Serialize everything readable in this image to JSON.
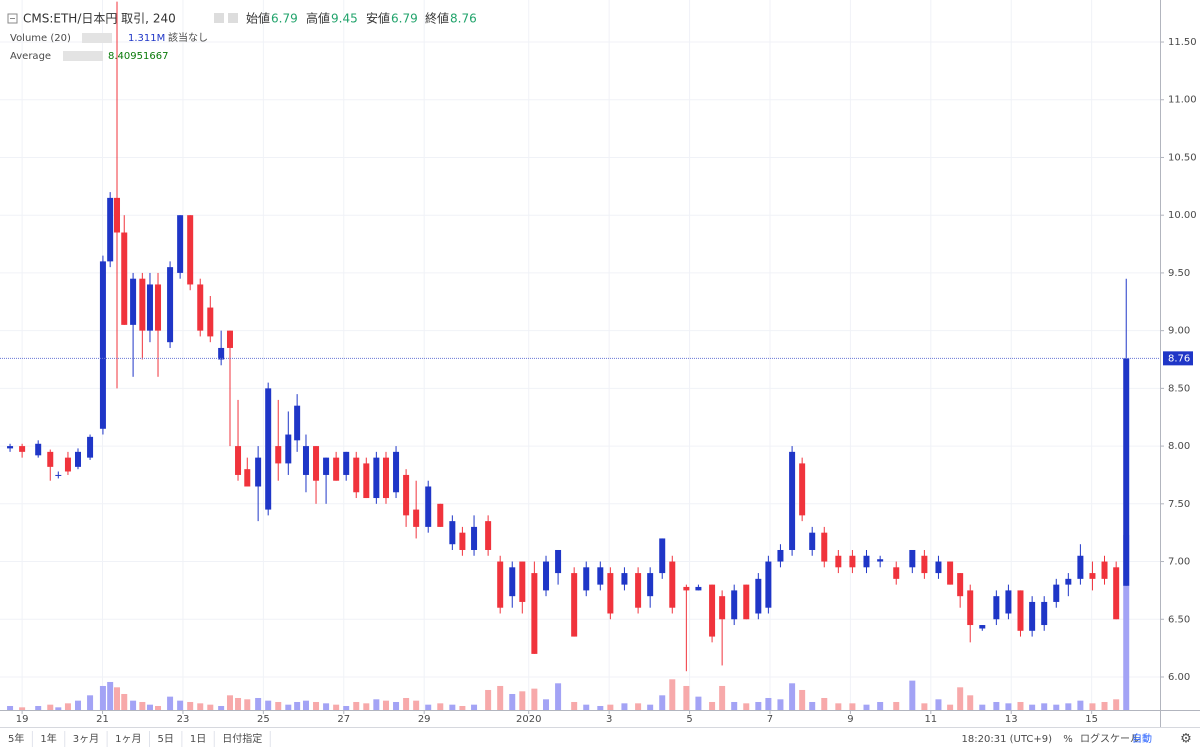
{
  "chart_data": {
    "type": "candlestick",
    "legend": {
      "symbol": "CMS:ETH/日本円 取引, 240",
      "open_label": "始値",
      "open": 6.79,
      "high_label": "高値",
      "high": 9.45,
      "low_label": "安値",
      "low": 6.79,
      "close_label": "終値",
      "close": 8.76
    },
    "volume_legend": {
      "name": "Volume (20)",
      "value": "1.311M",
      "note": "該当なし"
    },
    "average_legend": {
      "name": "Average",
      "value": 8.40951667
    },
    "last_price": 8.76,
    "up_color": "#1f36c7",
    "down_color": "#f0333c",
    "volume_up_color": "#a3a3f5",
    "volume_down_color": "#f7a9aa",
    "grid": true,
    "xlim": [
      -0.55,
      28.3
    ],
    "ylim": [
      5.714,
      11.864
    ],
    "yticks": [
      {
        "value": 6,
        "label": "6.00"
      },
      {
        "value": 6.5,
        "label": "6.50"
      },
      {
        "value": 7,
        "label": "7.00"
      },
      {
        "value": 7.5,
        "label": "7.50"
      },
      {
        "value": 8,
        "label": "8.00"
      },
      {
        "value": 8.5,
        "label": "8.50"
      },
      {
        "value": 9,
        "label": "9.00"
      },
      {
        "value": 9.5,
        "label": "9.50"
      },
      {
        "value": 10,
        "label": "10.00"
      },
      {
        "value": 10.5,
        "label": "10.50"
      },
      {
        "value": 11,
        "label": "11.00"
      },
      {
        "value": 11.5,
        "label": "11.50"
      }
    ],
    "xticks": [
      {
        "value": 0,
        "label": "19"
      },
      {
        "value": 2,
        "label": "21"
      },
      {
        "value": 4,
        "label": "23"
      },
      {
        "value": 6,
        "label": "25"
      },
      {
        "value": 8,
        "label": "27"
      },
      {
        "value": 10,
        "label": "29"
      },
      {
        "value": 12.6,
        "label": "2020"
      },
      {
        "value": 14.6,
        "label": "3"
      },
      {
        "value": 16.6,
        "label": "5"
      },
      {
        "value": 18.6,
        "label": "7"
      },
      {
        "value": 20.6,
        "label": "9"
      },
      {
        "value": 22.6,
        "label": "11"
      },
      {
        "value": 24.6,
        "label": "13"
      },
      {
        "value": 26.6,
        "label": "15"
      }
    ],
    "x": [
      -0.3,
      0,
      0.4,
      0.7,
      0.9,
      1.14,
      1.39,
      1.69,
      2.01,
      2.19,
      2.36,
      2.54,
      2.76,
      2.99,
      3.18,
      3.38,
      3.68,
      3.93,
      4.18,
      4.43,
      4.68,
      4.95,
      5.17,
      5.37,
      5.6,
      5.87,
      6.12,
      6.37,
      6.62,
      6.84,
      7.06,
      7.31,
      7.56,
      7.81,
      8.06,
      8.31,
      8.56,
      8.81,
      9.05,
      9.3,
      9.55,
      9.8,
      10.1,
      10.4,
      10.7,
      10.95,
      11.24,
      11.59,
      11.89,
      12.19,
      12.44,
      12.74,
      13.03,
      13.33,
      13.73,
      14.03,
      14.38,
      14.63,
      14.98,
      15.32,
      15.62,
      15.92,
      16.17,
      16.52,
      16.82,
      17.16,
      17.41,
      17.71,
      18.01,
      18.31,
      18.56,
      18.86,
      19.15,
      19.4,
      19.65,
      19.95,
      20.3,
      20.65,
      21.0,
      21.34,
      21.74,
      22.14,
      22.44,
      22.79,
      23.08,
      23.33,
      23.58,
      23.88,
      24.23,
      24.53,
      24.83,
      25.12,
      25.42,
      25.72,
      26.02,
      26.32,
      26.62,
      26.92,
      27.21,
      27.46
    ],
    "open": [
      7.98,
      8.0,
      7.92,
      7.95,
      7.75,
      7.9,
      7.82,
      7.9,
      8.15,
      9.6,
      10.15,
      9.85,
      9.05,
      9.45,
      9.0,
      9.4,
      8.9,
      9.5,
      10.0,
      9.4,
      9.2,
      8.75,
      9.0,
      8.0,
      7.8,
      7.65,
      7.45,
      8.0,
      7.85,
      8.05,
      7.75,
      8.0,
      7.75,
      7.9,
      7.75,
      7.9,
      7.85,
      7.55,
      7.9,
      7.6,
      7.75,
      7.45,
      7.3,
      7.5,
      7.15,
      7.25,
      7.1,
      7.35,
      7.0,
      6.7,
      7.0,
      6.9,
      6.75,
      6.9,
      6.9,
      6.75,
      6.8,
      6.9,
      6.8,
      6.9,
      6.7,
      6.9,
      7.0,
      6.78,
      6.75,
      6.8,
      6.7,
      6.5,
      6.8,
      6.55,
      6.6,
      7.0,
      7.1,
      7.85,
      7.1,
      7.25,
      7.05,
      7.05,
      6.95,
      7.0,
      6.95,
      6.95,
      7.05,
      6.9,
      7.0,
      6.9,
      6.75,
      6.42,
      6.5,
      6.55,
      6.75,
      6.4,
      6.45,
      6.65,
      6.8,
      6.85,
      6.9,
      7.0,
      6.95,
      6.79
    ],
    "high": [
      8.02,
      8.02,
      8.05,
      7.97,
      7.78,
      7.95,
      7.98,
      8.1,
      9.65,
      10.2,
      11.85,
      10.0,
      9.5,
      9.5,
      9.5,
      9.5,
      9.6,
      10.0,
      10.0,
      9.45,
      9.3,
      9.0,
      9.0,
      8.4,
      7.9,
      8.0,
      8.55,
      8.4,
      8.3,
      8.45,
      8.1,
      8.0,
      7.9,
      7.95,
      7.95,
      7.95,
      7.9,
      7.95,
      7.95,
      8.0,
      7.8,
      7.7,
      7.7,
      7.5,
      7.4,
      7.3,
      7.4,
      7.4,
      7.05,
      7.0,
      7.0,
      7.0,
      7.05,
      7.1,
      6.95,
      7.0,
      7.0,
      6.95,
      6.95,
      6.95,
      6.95,
      7.2,
      7.05,
      6.8,
      6.8,
      6.8,
      6.75,
      6.8,
      6.8,
      6.9,
      7.05,
      7.15,
      8.0,
      7.9,
      7.3,
      7.3,
      7.1,
      7.1,
      7.1,
      7.05,
      7.0,
      7.1,
      7.1,
      7.05,
      7.0,
      6.9,
      6.8,
      6.45,
      6.75,
      6.8,
      6.75,
      6.7,
      6.7,
      6.85,
      6.9,
      7.15,
      7.0,
      7.05,
      7.0,
      9.45
    ],
    "low": [
      7.95,
      7.9,
      7.9,
      7.7,
      7.72,
      7.75,
      7.8,
      7.88,
      8.1,
      9.55,
      8.5,
      9.05,
      8.6,
      8.75,
      8.9,
      8.6,
      8.85,
      9.45,
      9.35,
      8.95,
      8.9,
      8.7,
      8.0,
      7.7,
      7.65,
      7.35,
      7.4,
      7.7,
      7.75,
      7.95,
      7.6,
      7.5,
      7.5,
      7.7,
      7.7,
      7.55,
      7.55,
      7.5,
      7.5,
      7.55,
      7.3,
      7.2,
      7.25,
      7.3,
      7.1,
      7.05,
      7.05,
      7.05,
      6.55,
      6.6,
      6.55,
      6.2,
      6.7,
      6.8,
      6.35,
      6.7,
      6.75,
      6.5,
      6.75,
      6.55,
      6.6,
      6.85,
      6.55,
      6.05,
      6.75,
      6.3,
      6.1,
      6.45,
      6.5,
      6.5,
      6.55,
      6.95,
      7.05,
      7.35,
      7.05,
      6.95,
      6.9,
      6.9,
      6.9,
      6.95,
      6.8,
      6.9,
      6.85,
      6.85,
      6.8,
      6.6,
      6.3,
      6.4,
      6.45,
      6.5,
      6.35,
      6.35,
      6.4,
      6.6,
      6.7,
      6.8,
      6.75,
      6.8,
      6.5,
      6.79
    ],
    "close": [
      8.0,
      7.95,
      8.02,
      7.82,
      7.75,
      7.78,
      7.95,
      8.08,
      9.6,
      10.15,
      9.85,
      9.05,
      9.45,
      9.0,
      9.4,
      9.0,
      9.55,
      10.0,
      9.4,
      9.0,
      8.95,
      8.85,
      8.85,
      7.75,
      7.65,
      7.9,
      8.5,
      7.85,
      8.1,
      8.35,
      8.0,
      7.7,
      7.9,
      7.7,
      7.95,
      7.6,
      7.55,
      7.9,
      7.55,
      7.95,
      7.4,
      7.3,
      7.65,
      7.3,
      7.35,
      7.1,
      7.3,
      7.1,
      6.6,
      6.95,
      6.65,
      6.2,
      7.0,
      7.1,
      6.35,
      6.95,
      6.95,
      6.55,
      6.9,
      6.6,
      6.9,
      7.2,
      6.6,
      6.75,
      6.78,
      6.35,
      6.5,
      6.75,
      6.5,
      6.85,
      7.0,
      7.1,
      7.95,
      7.4,
      7.25,
      7.0,
      6.95,
      6.95,
      7.05,
      7.02,
      6.85,
      7.1,
      6.9,
      7.0,
      6.8,
      6.7,
      6.45,
      6.45,
      6.7,
      6.75,
      6.4,
      6.65,
      6.65,
      6.8,
      6.85,
      7.05,
      6.85,
      6.85,
      6.5,
      8.76
    ],
    "volume": [
      30000,
      20000,
      30000,
      40000,
      20000,
      50000,
      70000,
      110000,
      180000,
      210000,
      170000,
      120000,
      70000,
      60000,
      40000,
      30000,
      100000,
      70000,
      60000,
      50000,
      40000,
      30000,
      110000,
      90000,
      80000,
      90000,
      70000,
      60000,
      40000,
      60000,
      70000,
      60000,
      50000,
      40000,
      30000,
      60000,
      50000,
      80000,
      70000,
      60000,
      90000,
      70000,
      40000,
      50000,
      40000,
      30000,
      40000,
      150000,
      180000,
      120000,
      140000,
      160000,
      80000,
      200000,
      60000,
      40000,
      30000,
      40000,
      50000,
      50000,
      40000,
      110000,
      230000,
      180000,
      100000,
      60000,
      180000,
      60000,
      50000,
      60000,
      90000,
      80000,
      200000,
      150000,
      60000,
      90000,
      50000,
      50000,
      40000,
      60000,
      60000,
      220000,
      50000,
      80000,
      40000,
      170000,
      110000,
      40000,
      60000,
      50000,
      60000,
      40000,
      50000,
      40000,
      50000,
      70000,
      50000,
      60000,
      80000,
      1311000
    ],
    "time": "18:20:31 (UTC+9)",
    "ranges": [
      "5年",
      "1年",
      "3ヶ月",
      "1ヶ月",
      "5日",
      "1日",
      "日付指定"
    ],
    "scale_options": [
      "%",
      "ログスケール",
      "自動"
    ]
  }
}
